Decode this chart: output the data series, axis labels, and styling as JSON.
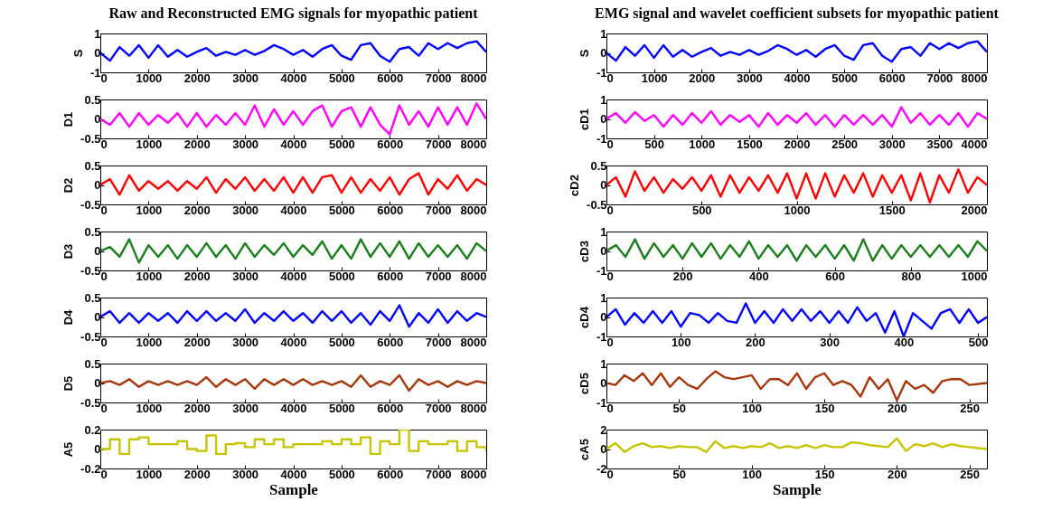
{
  "chart_data": [
    {
      "type": "line",
      "title": "Raw and Reconstructed EMG signals for myopathic patient",
      "ylabel": "S",
      "xlim": [
        0,
        8000
      ],
      "xticks": [
        0,
        1000,
        2000,
        3000,
        4000,
        5000,
        6000,
        7000,
        8000
      ],
      "ylim": [
        -1,
        1
      ],
      "yticks": [
        -1,
        0,
        1
      ],
      "x": [
        0,
        200,
        400,
        600,
        800,
        1000,
        1200,
        1400,
        1600,
        1800,
        2000,
        2200,
        2400,
        2600,
        2800,
        3000,
        3200,
        3400,
        3600,
        3800,
        4000,
        4200,
        4400,
        4600,
        4800,
        5000,
        5200,
        5400,
        5600,
        5800,
        6000,
        6200,
        6400,
        6600,
        6800,
        7000,
        7200,
        7400,
        7600,
        7800,
        8000
      ],
      "series": [
        {
          "color": "#0000ff",
          "values": [
            0,
            -0.4,
            0.3,
            -0.15,
            0.4,
            -0.25,
            0.4,
            -0.2,
            0.15,
            -0.2,
            0.05,
            0.25,
            -0.15,
            0.05,
            -0.1,
            0.15,
            -0.1,
            0.1,
            0.4,
            0.2,
            -0.1,
            0.15,
            -0.2,
            0.2,
            0.4,
            -0.15,
            -0.35,
            0.4,
            0.5,
            -0.15,
            -0.45,
            0.2,
            0.3,
            -0.15,
            0.5,
            0.2,
            0.5,
            0.25,
            0.5,
            0.6,
            0.05
          ]
        }
      ]
    },
    {
      "type": "line",
      "title": "EMG signal and wavelet coefficient subsets for myopathic patient",
      "ylabel": "S",
      "xlim": [
        0,
        8000
      ],
      "xticks": [
        0,
        1000,
        2000,
        3000,
        4000,
        5000,
        6000,
        7000,
        8000
      ],
      "ylim": [
        -1,
        1
      ],
      "yticks": [
        -1,
        0,
        1
      ],
      "x": [
        0,
        200,
        400,
        600,
        800,
        1000,
        1200,
        1400,
        1600,
        1800,
        2000,
        2200,
        2400,
        2600,
        2800,
        3000,
        3200,
        3400,
        3600,
        3800,
        4000,
        4200,
        4400,
        4600,
        4800,
        5000,
        5200,
        5400,
        5600,
        5800,
        6000,
        6200,
        6400,
        6600,
        6800,
        7000,
        7200,
        7400,
        7600,
        7800,
        8000
      ],
      "series": [
        {
          "color": "#0000ff",
          "values": [
            0,
            -0.4,
            0.3,
            -0.15,
            0.4,
            -0.25,
            0.4,
            -0.2,
            0.15,
            -0.2,
            0.05,
            0.25,
            -0.15,
            0.05,
            -0.1,
            0.15,
            -0.1,
            0.1,
            0.4,
            0.2,
            -0.1,
            0.15,
            -0.2,
            0.2,
            0.4,
            -0.15,
            -0.35,
            0.4,
            0.5,
            -0.15,
            -0.45,
            0.2,
            0.3,
            -0.15,
            0.5,
            0.2,
            0.5,
            0.25,
            0.5,
            0.6,
            0.05
          ]
        }
      ]
    },
    {
      "type": "line",
      "ylabel": "D1",
      "xlim": [
        0,
        8000
      ],
      "xticks": [
        0,
        1000,
        2000,
        3000,
        4000,
        5000,
        6000,
        7000,
        8000
      ],
      "ylim": [
        -0.5,
        0.5
      ],
      "yticks": [
        -0.5,
        0,
        0.5
      ],
      "x": [
        0,
        200,
        400,
        600,
        800,
        1000,
        1200,
        1400,
        1600,
        1800,
        2000,
        2200,
        2400,
        2600,
        2800,
        3000,
        3200,
        3400,
        3600,
        3800,
        4000,
        4200,
        4400,
        4600,
        4800,
        5000,
        5200,
        5400,
        5600,
        5800,
        6000,
        6200,
        6400,
        6600,
        6800,
        7000,
        7200,
        7400,
        7600,
        7800,
        8000
      ],
      "series": [
        {
          "color": "#ff00ff",
          "values": [
            0,
            -0.15,
            0.15,
            -0.2,
            0.15,
            -0.15,
            0.1,
            -0.1,
            0.15,
            -0.2,
            0.15,
            -0.2,
            0.1,
            -0.15,
            0.15,
            -0.15,
            0.35,
            -0.2,
            0.25,
            -0.15,
            0.2,
            -0.15,
            0.2,
            0.35,
            -0.2,
            0.2,
            0.3,
            -0.2,
            0.3,
            -0.15,
            -0.4,
            0.35,
            -0.15,
            0.2,
            -0.2,
            0.3,
            -0.15,
            0.3,
            -0.15,
            0.4,
            0
          ]
        }
      ]
    },
    {
      "type": "line",
      "ylabel": "cD1",
      "xlim": [
        0,
        4000
      ],
      "xticks": [
        0,
        500,
        1000,
        1500,
        2000,
        2500,
        3000,
        3500,
        4000
      ],
      "ylim": [
        -1,
        1
      ],
      "yticks": [
        -1,
        0,
        1
      ],
      "x": [
        0,
        100,
        200,
        300,
        400,
        500,
        600,
        700,
        800,
        900,
        1000,
        1100,
        1200,
        1300,
        1400,
        1500,
        1600,
        1700,
        1800,
        1900,
        2000,
        2100,
        2200,
        2300,
        2400,
        2500,
        2600,
        2700,
        2800,
        2900,
        3000,
        3100,
        3200,
        3300,
        3400,
        3500,
        3600,
        3700,
        3800,
        3900,
        4000
      ],
      "series": [
        {
          "color": "#ff00ff",
          "values": [
            0,
            0.3,
            -0.2,
            0.35,
            -0.1,
            0.2,
            -0.4,
            0.2,
            -0.3,
            0.3,
            -0.2,
            0.4,
            -0.3,
            0.2,
            -0.15,
            0.2,
            -0.4,
            0.3,
            -0.3,
            0.2,
            -0.2,
            0.3,
            -0.3,
            0.2,
            -0.4,
            0.2,
            -0.3,
            0.2,
            -0.3,
            0.2,
            -0.4,
            0.6,
            -0.2,
            0.3,
            -0.3,
            0.2,
            -0.3,
            0.3,
            -0.4,
            0.3,
            0
          ]
        }
      ]
    },
    {
      "type": "line",
      "ylabel": "D2",
      "xlim": [
        0,
        8000
      ],
      "xticks": [
        0,
        1000,
        2000,
        3000,
        4000,
        5000,
        6000,
        7000,
        8000
      ],
      "ylim": [
        -0.5,
        0.5
      ],
      "yticks": [
        -0.5,
        0,
        0.5
      ],
      "x": [
        0,
        200,
        400,
        600,
        800,
        1000,
        1200,
        1400,
        1600,
        1800,
        2000,
        2200,
        2400,
        2600,
        2800,
        3000,
        3200,
        3400,
        3600,
        3800,
        4000,
        4200,
        4400,
        4600,
        4800,
        5000,
        5200,
        5400,
        5600,
        5800,
        6000,
        6200,
        6400,
        6600,
        6800,
        7000,
        7200,
        7400,
        7600,
        7800,
        8000
      ],
      "series": [
        {
          "color": "#ff0000",
          "values": [
            0,
            0.15,
            -0.25,
            0.25,
            -0.15,
            0.1,
            -0.1,
            0.1,
            -0.15,
            0.1,
            -0.1,
            0.2,
            -0.2,
            0.15,
            -0.1,
            0.2,
            -0.15,
            0.15,
            -0.15,
            0.2,
            -0.2,
            0.2,
            -0.2,
            0.2,
            0.25,
            -0.2,
            0.2,
            -0.2,
            0.15,
            -0.15,
            0.2,
            -0.25,
            0.15,
            0.3,
            -0.25,
            0.15,
            -0.1,
            0.25,
            -0.15,
            0.15,
            0
          ]
        }
      ]
    },
    {
      "type": "line",
      "ylabel": "cD2",
      "xlim": [
        0,
        2000
      ],
      "xticks": [
        0,
        500,
        1000,
        1500,
        2000
      ],
      "ylim": [
        -0.5,
        0.5
      ],
      "yticks": [
        -0.5,
        0,
        0.5
      ],
      "x": [
        0,
        50,
        100,
        150,
        200,
        250,
        300,
        350,
        400,
        450,
        500,
        550,
        600,
        650,
        700,
        750,
        800,
        850,
        900,
        950,
        1000,
        1050,
        1100,
        1150,
        1200,
        1250,
        1300,
        1350,
        1400,
        1450,
        1500,
        1550,
        1600,
        1650,
        1700,
        1750,
        1800,
        1850,
        1900,
        1950,
        2000
      ],
      "series": [
        {
          "color": "#ff0000",
          "values": [
            0,
            0.2,
            -0.3,
            0.35,
            -0.15,
            0.2,
            -0.2,
            0.15,
            -0.1,
            0.2,
            -0.15,
            0.25,
            -0.3,
            0.25,
            -0.2,
            0.2,
            -0.15,
            0.25,
            -0.2,
            0.3,
            -0.35,
            0.3,
            -0.35,
            0.3,
            -0.3,
            0.25,
            -0.2,
            0.3,
            -0.3,
            0.25,
            -0.2,
            0.25,
            -0.4,
            0.3,
            -0.45,
            0.25,
            -0.2,
            0.4,
            -0.2,
            0.2,
            0
          ]
        }
      ]
    },
    {
      "type": "line",
      "ylabel": "D3",
      "xlim": [
        0,
        8000
      ],
      "xticks": [
        0,
        1000,
        2000,
        3000,
        4000,
        5000,
        6000,
        7000,
        8000
      ],
      "ylim": [
        -0.5,
        0.5
      ],
      "yticks": [
        -0.5,
        0,
        0.5
      ],
      "x": [
        0,
        200,
        400,
        600,
        800,
        1000,
        1200,
        1400,
        1600,
        1800,
        2000,
        2200,
        2400,
        2600,
        2800,
        3000,
        3200,
        3400,
        3600,
        3800,
        4000,
        4200,
        4400,
        4600,
        4800,
        5000,
        5200,
        5400,
        5600,
        5800,
        6000,
        6200,
        6400,
        6600,
        6800,
        7000,
        7200,
        7400,
        7600,
        7800,
        8000
      ],
      "series": [
        {
          "color": "#1a801a",
          "values": [
            0,
            0.1,
            -0.15,
            0.3,
            -0.3,
            0.15,
            -0.15,
            0.15,
            -0.2,
            0.15,
            -0.15,
            0.2,
            -0.15,
            0.15,
            -0.2,
            0.2,
            -0.15,
            0.15,
            -0.1,
            0.2,
            -0.15,
            0.15,
            -0.1,
            0.25,
            -0.2,
            0.15,
            -0.2,
            0.3,
            -0.15,
            0.2,
            -0.15,
            0.25,
            -0.2,
            0.2,
            -0.15,
            0.15,
            -0.15,
            0.15,
            -0.2,
            0.2,
            0
          ]
        }
      ]
    },
    {
      "type": "line",
      "ylabel": "cD3",
      "xlim": [
        0,
        1000
      ],
      "xticks": [
        0,
        200,
        400,
        600,
        800,
        1000
      ],
      "ylim": [
        -1,
        1
      ],
      "yticks": [
        -1,
        0,
        1
      ],
      "x": [
        0,
        25,
        50,
        75,
        100,
        125,
        150,
        175,
        200,
        225,
        250,
        275,
        300,
        325,
        350,
        375,
        400,
        425,
        450,
        475,
        500,
        525,
        550,
        575,
        600,
        625,
        650,
        675,
        700,
        725,
        750,
        775,
        800,
        825,
        850,
        875,
        900,
        925,
        950,
        975,
        1000
      ],
      "series": [
        {
          "color": "#1a801a",
          "values": [
            0,
            0.3,
            -0.3,
            0.6,
            -0.4,
            0.4,
            -0.3,
            0.3,
            -0.4,
            0.4,
            -0.3,
            0.4,
            -0.4,
            0.3,
            -0.3,
            0.5,
            -0.4,
            0.3,
            -0.3,
            0.3,
            -0.5,
            0.3,
            -0.3,
            0.3,
            -0.4,
            0.3,
            -0.5,
            0.6,
            -0.5,
            0.3,
            -0.4,
            0.3,
            -0.3,
            0.3,
            -0.3,
            0.3,
            -0.3,
            0.3,
            -0.3,
            0.5,
            0
          ]
        }
      ]
    },
    {
      "type": "line",
      "ylabel": "D4",
      "xlim": [
        0,
        8000
      ],
      "xticks": [
        0,
        1000,
        2000,
        3000,
        4000,
        5000,
        6000,
        7000,
        8000
      ],
      "ylim": [
        -0.5,
        0.5
      ],
      "yticks": [
        -0.5,
        0,
        0.5
      ],
      "x": [
        0,
        200,
        400,
        600,
        800,
        1000,
        1200,
        1400,
        1600,
        1800,
        2000,
        2200,
        2400,
        2600,
        2800,
        3000,
        3200,
        3400,
        3600,
        3800,
        4000,
        4200,
        4400,
        4600,
        4800,
        5000,
        5200,
        5400,
        5600,
        5800,
        6000,
        6200,
        6400,
        6600,
        6800,
        7000,
        7200,
        7400,
        7600,
        7800,
        8000
      ],
      "series": [
        {
          "color": "#0000ff",
          "values": [
            0,
            0.15,
            -0.15,
            0.1,
            -0.15,
            0.1,
            -0.1,
            0.1,
            -0.15,
            0.15,
            -0.1,
            0.15,
            -0.1,
            0.1,
            -0.1,
            0.2,
            -0.15,
            0.1,
            -0.1,
            0.15,
            -0.1,
            0.1,
            -0.15,
            0.15,
            -0.1,
            0.15,
            -0.15,
            0.1,
            -0.2,
            0.15,
            -0.1,
            0.3,
            -0.25,
            0.1,
            -0.15,
            0.2,
            -0.15,
            0.15,
            -0.1,
            0.1,
            0
          ]
        }
      ]
    },
    {
      "type": "line",
      "ylabel": "cD4",
      "xlim": [
        0,
        512
      ],
      "xticks": [
        0,
        100,
        200,
        300,
        400,
        500
      ],
      "ylim": [
        -1,
        1
      ],
      "yticks": [
        -1,
        0,
        1
      ],
      "x": [
        0,
        12.5,
        25,
        37.5,
        50,
        62.5,
        75,
        87.5,
        100,
        112.5,
        125,
        137.5,
        150,
        162.5,
        175,
        187.5,
        200,
        212.5,
        225,
        237.5,
        250,
        262.5,
        275,
        287.5,
        300,
        312.5,
        325,
        337.5,
        350,
        362.5,
        375,
        387.5,
        400,
        412.5,
        425,
        437.5,
        450,
        462.5,
        475,
        487.5,
        500,
        512
      ],
      "series": [
        {
          "color": "#0000ff",
          "values": [
            0,
            0.4,
            -0.4,
            0.2,
            -0.3,
            0.3,
            -0.3,
            0.3,
            -0.5,
            0.2,
            0.1,
            -0.3,
            0.2,
            -0.2,
            -0.3,
            0.7,
            -0.3,
            0.3,
            -0.3,
            0.4,
            -0.2,
            0.4,
            -0.2,
            0.3,
            -0.3,
            0.3,
            -0.3,
            0.5,
            -0.2,
            0.2,
            -0.8,
            0.3,
            -1,
            0.2,
            -0.2,
            -0.6,
            0.2,
            0.4,
            -0.3,
            0.4,
            -0.3,
            0
          ]
        }
      ]
    },
    {
      "type": "line",
      "ylabel": "D5",
      "xlim": [
        0,
        8000
      ],
      "xticks": [
        0,
        1000,
        2000,
        3000,
        4000,
        5000,
        6000,
        7000,
        8000
      ],
      "ylim": [
        -0.5,
        0.5
      ],
      "yticks": [
        -0.5,
        0,
        0.5
      ],
      "x": [
        0,
        200,
        400,
        600,
        800,
        1000,
        1200,
        1400,
        1600,
        1800,
        2000,
        2200,
        2400,
        2600,
        2800,
        3000,
        3200,
        3400,
        3600,
        3800,
        4000,
        4200,
        4400,
        4600,
        4800,
        5000,
        5200,
        5400,
        5600,
        5800,
        6000,
        6200,
        6400,
        6600,
        6800,
        7000,
        7200,
        7400,
        7600,
        7800,
        8000
      ],
      "series": [
        {
          "color": "#a8380c",
          "values": [
            0,
            0.05,
            -0.05,
            0.1,
            -0.1,
            0.05,
            -0.05,
            0.05,
            -0.05,
            0.05,
            -0.05,
            0.15,
            -0.1,
            0.1,
            -0.05,
            0.1,
            -0.15,
            0.1,
            -0.05,
            0.1,
            -0.05,
            0.1,
            -0.05,
            0.05,
            -0.05,
            0.05,
            -0.1,
            0.2,
            -0.1,
            0.05,
            -0.05,
            0.2,
            -0.2,
            0.1,
            -0.05,
            0.05,
            -0.1,
            0.05,
            -0.05,
            0.05,
            0
          ]
        }
      ]
    },
    {
      "type": "line",
      "ylabel": "cD5",
      "xlim": [
        0,
        262
      ],
      "xticks": [
        0,
        50,
        100,
        150,
        200,
        250
      ],
      "ylim": [
        -1,
        1
      ],
      "yticks": [
        -1,
        0,
        1
      ],
      "x": [
        0,
        6.25,
        12.5,
        18.75,
        25,
        31.25,
        37.5,
        43.75,
        50,
        56.25,
        62.5,
        68.75,
        75,
        81.25,
        87.5,
        93.75,
        100,
        106.25,
        112.5,
        118.75,
        125,
        131.25,
        137.5,
        143.75,
        150,
        156.25,
        162.5,
        168.75,
        175,
        181.25,
        187.5,
        193.75,
        200,
        206.25,
        212.5,
        218.75,
        225,
        231.25,
        237.5,
        243.75,
        250,
        262
      ],
      "series": [
        {
          "color": "#a8380c",
          "values": [
            0,
            -0.1,
            0.4,
            0.1,
            0.5,
            -0.1,
            0.5,
            -0.2,
            0.3,
            -0.1,
            -0.3,
            0.2,
            0.6,
            0.3,
            0.2,
            0.3,
            0.4,
            -0.3,
            0.2,
            0.2,
            -0.1,
            0.5,
            -0.3,
            0.3,
            0.5,
            -0.1,
            0.1,
            -0.1,
            -0.7,
            0.3,
            -0.3,
            0.2,
            -0.9,
            0.1,
            -0.3,
            -0.1,
            -0.5,
            0.1,
            0.2,
            0.2,
            -0.1,
            0
          ]
        }
      ]
    },
    {
      "type": "step",
      "ylabel": "A5",
      "xlabel": "Sample",
      "xlim": [
        0,
        8000
      ],
      "xticks": [
        0,
        1000,
        2000,
        3000,
        4000,
        5000,
        6000,
        7000,
        8000
      ],
      "ylim": [
        -0.2,
        0.2
      ],
      "yticks": [
        -0.2,
        0,
        0.2
      ],
      "x": [
        0,
        200,
        400,
        600,
        800,
        1000,
        1200,
        1400,
        1600,
        1800,
        2000,
        2200,
        2400,
        2600,
        2800,
        3000,
        3200,
        3400,
        3600,
        3800,
        4000,
        4200,
        4400,
        4600,
        4800,
        5000,
        5200,
        5400,
        5600,
        5800,
        6000,
        6200,
        6400,
        6600,
        6800,
        7000,
        7200,
        7400,
        7600,
        7800,
        8000
      ],
      "series": [
        {
          "color": "#c8c400",
          "values": [
            0,
            0.1,
            -0.05,
            0.1,
            0.12,
            0.05,
            0.05,
            0.05,
            0.08,
            0,
            -0.02,
            0.14,
            -0.05,
            0.05,
            0.06,
            0.02,
            0.1,
            0.05,
            0.1,
            0.02,
            0.05,
            0.05,
            0.05,
            0.08,
            0.05,
            0.1,
            0.05,
            0.12,
            -0.05,
            0.08,
            0.05,
            0.2,
            -0.02,
            0.08,
            0.05,
            0.05,
            0.08,
            -0.02,
            0.08,
            0.02,
            -0.02
          ]
        }
      ]
    },
    {
      "type": "line",
      "ylabel": "cA5",
      "xlabel": "Sample",
      "xlim": [
        0,
        262
      ],
      "xticks": [
        0,
        50,
        100,
        150,
        200,
        250
      ],
      "ylim": [
        -2,
        2
      ],
      "yticks": [
        -2,
        0,
        2
      ],
      "x": [
        0,
        6.25,
        12.5,
        18.75,
        25,
        31.25,
        37.5,
        43.75,
        50,
        56.25,
        62.5,
        68.75,
        75,
        81.25,
        87.5,
        93.75,
        100,
        106.25,
        112.5,
        118.75,
        125,
        131.25,
        137.5,
        143.75,
        150,
        156.25,
        162.5,
        168.75,
        175,
        181.25,
        187.5,
        193.75,
        200,
        206.25,
        212.5,
        218.75,
        225,
        231.25,
        237.5,
        243.75,
        250,
        262
      ],
      "series": [
        {
          "color": "#c8c400",
          "values": [
            0,
            0.6,
            -0.3,
            0.3,
            0.6,
            0.2,
            0.3,
            0.1,
            0.3,
            0.2,
            0.2,
            -0.3,
            0.8,
            0.1,
            0.3,
            0.1,
            0.3,
            0.2,
            0.6,
            0.1,
            0.3,
            0.1,
            0.4,
            0.1,
            0.4,
            0.2,
            0.2,
            0.7,
            0.6,
            0.4,
            0.3,
            0.2,
            1.1,
            -0.2,
            0.5,
            0.3,
            0.6,
            0.2,
            0.5,
            0.3,
            0.2,
            0
          ]
        }
      ]
    }
  ]
}
